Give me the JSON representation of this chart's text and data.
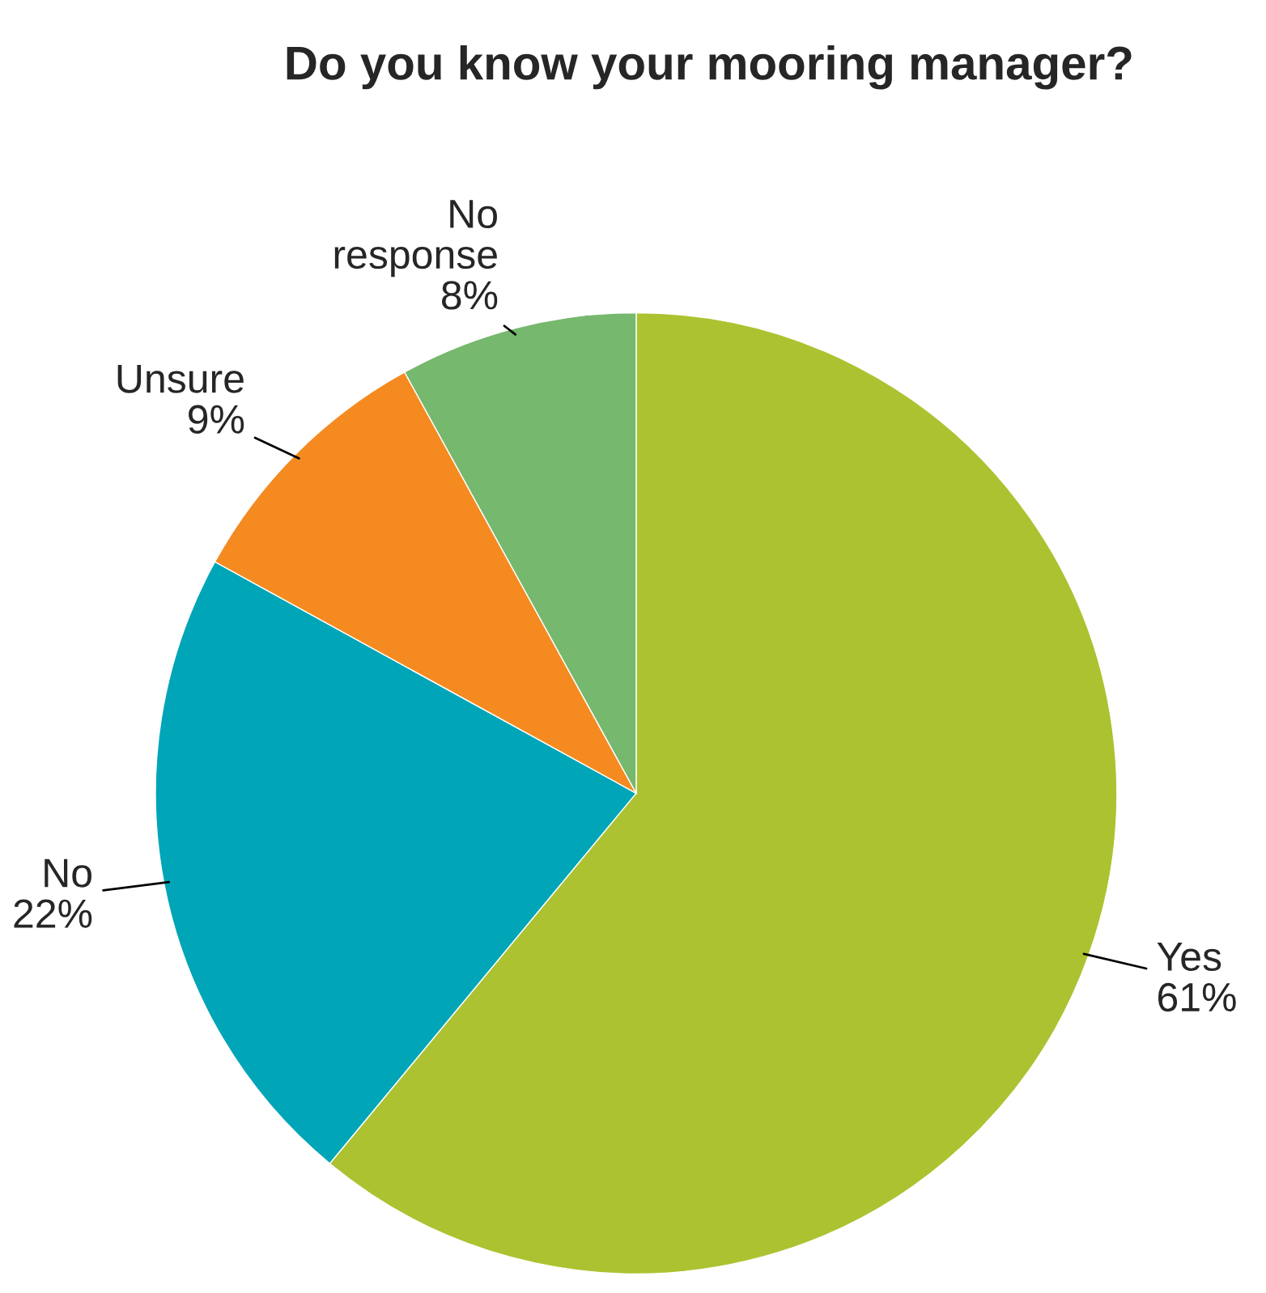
{
  "chart_data": {
    "type": "pie",
    "title": "Do you know your mooring manager?",
    "categories": [
      "Yes",
      "No",
      "Unsure",
      "No\nresponse"
    ],
    "values": [
      61,
      22,
      9,
      8
    ],
    "value_labels": [
      "61%",
      "22%",
      "9%",
      "8%"
    ],
    "colors": [
      "#adc230",
      "#00a5b8",
      "#f58a20",
      "#76b86e"
    ],
    "legend": false
  }
}
